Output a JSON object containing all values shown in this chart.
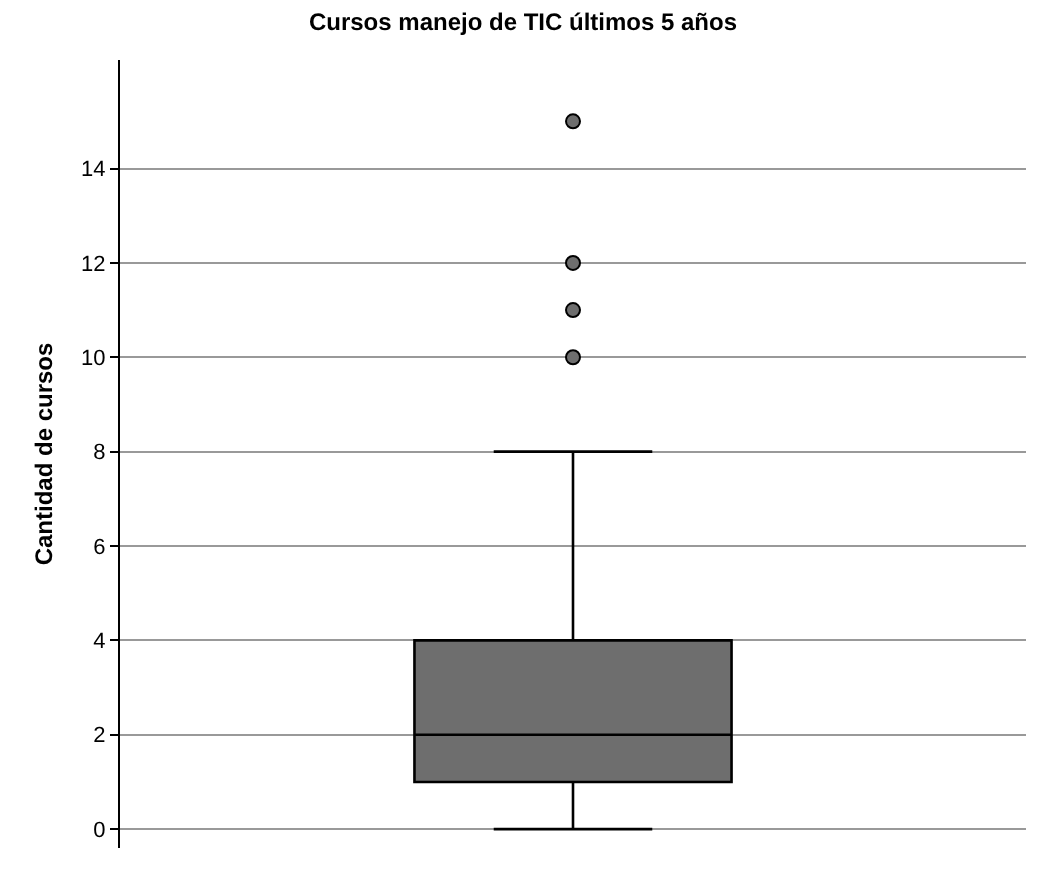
{
  "chart_data": {
    "type": "box",
    "title": "Cursos manejo de TIC últimos 5 años",
    "ylabel": "Cantidad de cursos",
    "categories": [
      null
    ],
    "boxes": [
      {
        "low": 0,
        "q1": 1,
        "median": 2,
        "q3": 4,
        "high": 8,
        "outliers": [
          10,
          11,
          12,
          15
        ]
      }
    ],
    "color": "#6e6e6e",
    "ylim": [
      -0.4,
      16.3
    ],
    "yticks": [
      0,
      2,
      4,
      6,
      8,
      10,
      12,
      14
    ],
    "grid": "y"
  }
}
